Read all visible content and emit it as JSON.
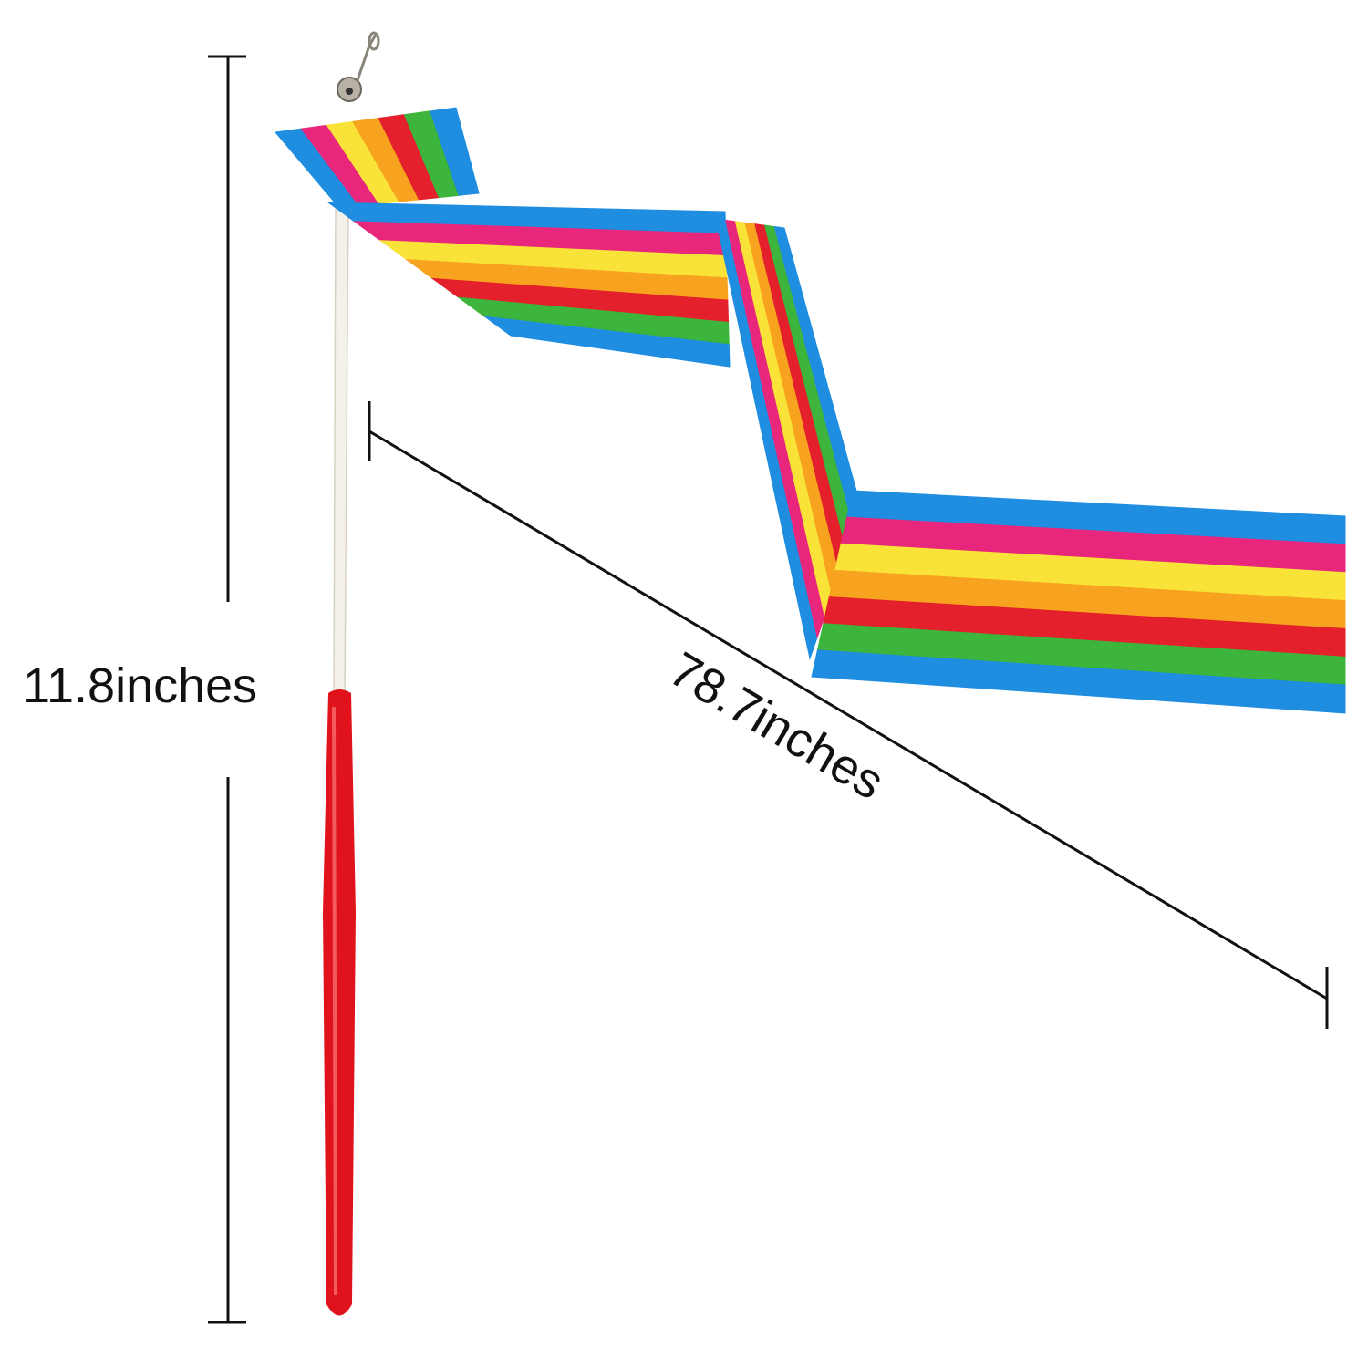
{
  "dimensions": {
    "stick_length": "11.8inches",
    "ribbon_length": "78.7inches"
  },
  "colors": {
    "stripes": [
      "#1f8de0",
      "#e8267c",
      "#fae338",
      "#f8a31f",
      "#e3202b",
      "#3db43b",
      "#1f8de0"
    ],
    "stick": "#f4f1ea",
    "handle": "#e0121c",
    "dimension_line": "#111111"
  },
  "icons": [
    "bell-icon",
    "swivel-clip-icon"
  ]
}
